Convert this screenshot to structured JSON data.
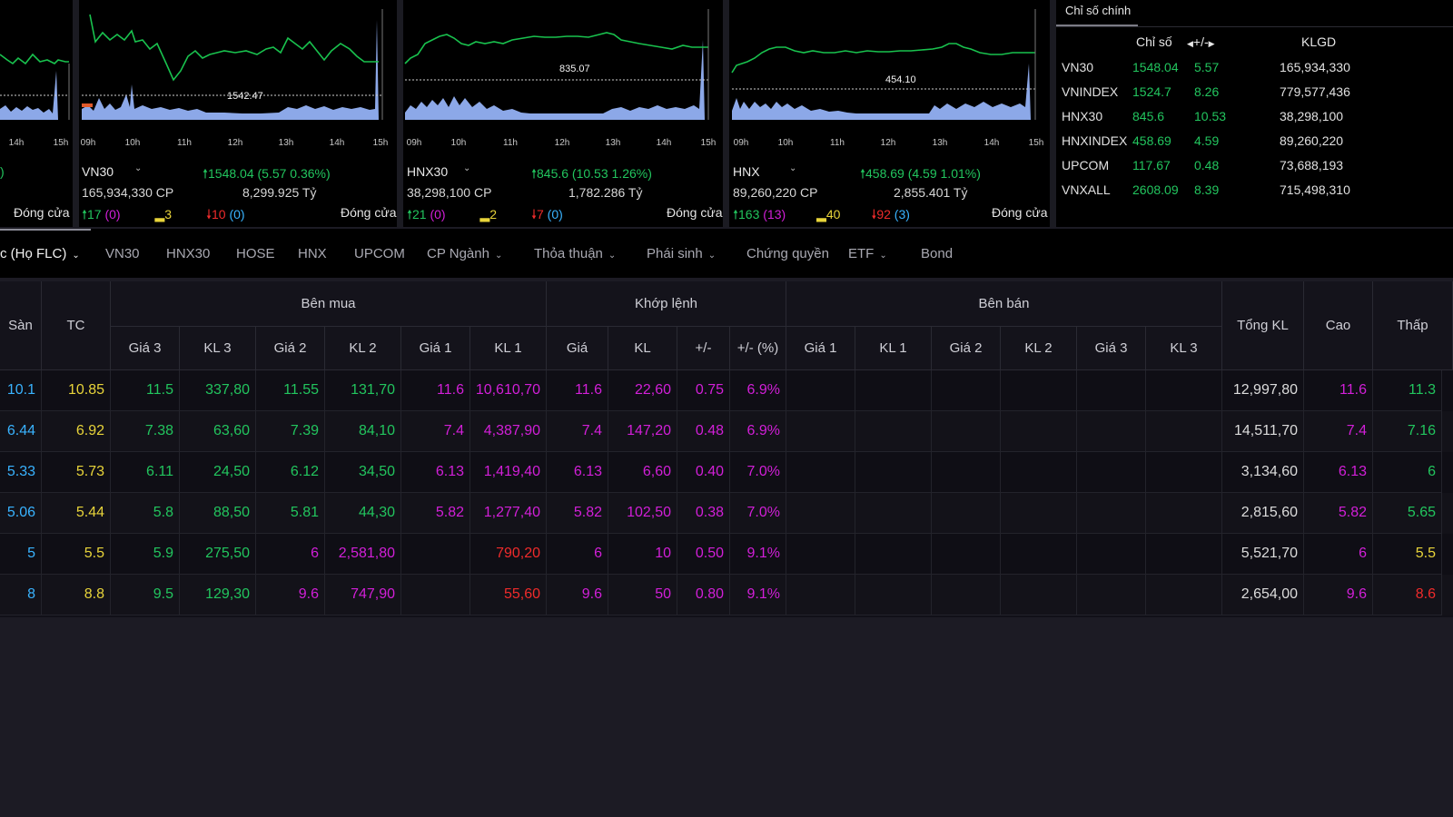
{
  "panels": [
    {
      "times": [
        "14h",
        "15h"
      ],
      "symbol_tail": ")",
      "close": "Đóng cửa"
    },
    {
      "symbol": "VN30",
      "level": "1542.47",
      "times": [
        "09h",
        "10h",
        "11h",
        "12h",
        "13h",
        "14h",
        "15h"
      ],
      "change": "🠕1548.04 (5.57  0.36%)",
      "volume": "165,934,330 CP",
      "value": "8,299.925 Tỷ",
      "up": "17",
      "up_ceiling": "(0)",
      "flat": "3",
      "down": "10",
      "down_floor": "(0)",
      "close": "Đóng cửa"
    },
    {
      "symbol": "HNX30",
      "level": "835.07",
      "times": [
        "09h",
        "10h",
        "11h",
        "12h",
        "13h",
        "14h",
        "15h"
      ],
      "change": "🠕845.6 (10.53  1.26%)",
      "volume": "38,298,100 CP",
      "value": "1,782.286 Tỷ",
      "up": "21",
      "up_ceiling": "(0)",
      "flat": "2",
      "down": "7",
      "down_floor": "(0)",
      "close": "Đóng cửa"
    },
    {
      "symbol": "HNX",
      "level": "454.10",
      "times": [
        "09h",
        "10h",
        "11h",
        "12h",
        "13h",
        "14h",
        "15h"
      ],
      "change": "🠕458.69 (4.59  1.01%)",
      "volume": "89,260,220 CP",
      "value": "2,855.401 Tỷ",
      "up": "163",
      "up_ceiling": "(13)",
      "flat": "40",
      "down": "92",
      "down_floor": "(3)",
      "close": "Đóng cửa"
    }
  ],
  "indices": {
    "title": "Chỉ số chính",
    "headers": {
      "index": "Chỉ số",
      "change": "+/-",
      "volume": "KLGD"
    },
    "rows": [
      {
        "name": "VN30",
        "value": "1548.04",
        "change": "5.57",
        "volume": "165,934,330"
      },
      {
        "name": "VNINDEX",
        "value": "1524.7",
        "change": "8.26",
        "volume": "779,577,436"
      },
      {
        "name": "HNX30",
        "value": "845.6",
        "change": "10.53",
        "volume": "38,298,100"
      },
      {
        "name": "HNXINDEX",
        "value": "458.69",
        "change": "4.59",
        "volume": "89,260,220"
      },
      {
        "name": "UPCOM",
        "value": "117.67",
        "change": "0.48",
        "volume": "73,688,193"
      },
      {
        "name": "VNXALL",
        "value": "2608.09",
        "change": "8.39",
        "volume": "715,498,310"
      }
    ]
  },
  "tabs": [
    {
      "label": "c (Họ FLC)",
      "dropdown": true
    },
    {
      "label": "VN30"
    },
    {
      "label": "HNX30"
    },
    {
      "label": "HOSE"
    },
    {
      "label": "HNX"
    },
    {
      "label": "UPCOM"
    },
    {
      "label": "CP Ngành",
      "dropdown": true
    },
    {
      "label": "Thỏa thuận",
      "dropdown": true
    },
    {
      "label": "Phái sinh",
      "dropdown": true
    },
    {
      "label": "Chứng quyền"
    },
    {
      "label": "ETF",
      "dropdown": true
    },
    {
      "label": "Bond"
    }
  ],
  "table": {
    "groups": {
      "buy": "Bên mua",
      "match": "Khớp lệnh",
      "sell": "Bên bán"
    },
    "headers": {
      "floor": "Sàn",
      "ref": "TC",
      "total": "Tổng KL",
      "high": "Cao",
      "low": "Thấp",
      "buy": [
        "Giá 3",
        "KL 3",
        "Giá 2",
        "KL 2",
        "Giá 1",
        "KL 1"
      ],
      "match": [
        "Giá",
        "KL",
        "+/-",
        "+/- (%)"
      ],
      "sell": [
        "Giá 1",
        "KL 1",
        "Giá 2",
        "KL 2",
        "Giá 3",
        "KL 3"
      ]
    },
    "rows": [
      {
        "floor": "10.1",
        "ref": "10.85",
        "b": [
          "11.5",
          "337,80",
          "11.55",
          "131,70",
          "11.6",
          "10,610,70"
        ],
        "m": [
          "11.6",
          "22,60",
          "0.75",
          "6.9%"
        ],
        "total": "12,997,80",
        "high": "11.6",
        "low": "11.3"
      },
      {
        "floor": "6.44",
        "ref": "6.92",
        "b": [
          "7.38",
          "63,60",
          "7.39",
          "84,10",
          "7.4",
          "4,387,90"
        ],
        "m": [
          "7.4",
          "147,20",
          "0.48",
          "6.9%"
        ],
        "total": "14,511,70",
        "high": "7.4",
        "low": "7.16"
      },
      {
        "floor": "5.33",
        "ref": "5.73",
        "b": [
          "6.11",
          "24,50",
          "6.12",
          "34,50",
          "6.13",
          "1,419,40"
        ],
        "m": [
          "6.13",
          "6,60",
          "0.40",
          "7.0%"
        ],
        "total": "3,134,60",
        "high": "6.13",
        "low": "6"
      },
      {
        "floor": "5.06",
        "ref": "5.44",
        "b": [
          "5.8",
          "88,50",
          "5.81",
          "44,30",
          "5.82",
          "1,277,40"
        ],
        "m": [
          "5.82",
          "102,50",
          "0.38",
          "7.0%"
        ],
        "total": "2,815,60",
        "high": "5.82",
        "low": "5.65"
      },
      {
        "floor": "5",
        "ref": "5.5",
        "b": [
          "5.9",
          "275,50",
          "6",
          "2,581,80",
          "",
          "790,20"
        ],
        "m": [
          "6",
          "10",
          "0.50",
          "9.1%"
        ],
        "total": "5,521,70",
        "high": "6",
        "low": "5.5"
      },
      {
        "floor": "8",
        "ref": "8.8",
        "b": [
          "9.5",
          "129,30",
          "9.6",
          "747,90",
          "",
          "55,60"
        ],
        "m": [
          "9.6",
          "50",
          "0.80",
          "9.1%"
        ],
        "total": "2,654,00",
        "high": "9.6",
        "low": "8.6"
      }
    ],
    "row_colors": [
      {
        "b": [
          "g",
          "g",
          "g",
          "g",
          "m",
          "m"
        ],
        "m": [
          "m",
          "m",
          "m",
          "m"
        ],
        "high": "m",
        "low": "g"
      },
      {
        "b": [
          "g",
          "g",
          "g",
          "g",
          "m",
          "m"
        ],
        "m": [
          "m",
          "m",
          "m",
          "m"
        ],
        "high": "m",
        "low": "g"
      },
      {
        "b": [
          "g",
          "g",
          "g",
          "g",
          "m",
          "m"
        ],
        "m": [
          "m",
          "m",
          "m",
          "m"
        ],
        "high": "m",
        "low": "g"
      },
      {
        "b": [
          "g",
          "g",
          "g",
          "g",
          "m",
          "m"
        ],
        "m": [
          "m",
          "m",
          "m",
          "m"
        ],
        "high": "m",
        "low": "g"
      },
      {
        "b": [
          "g",
          "g",
          "m",
          "m",
          "m",
          "r"
        ],
        "m": [
          "m",
          "m",
          "m",
          "m"
        ],
        "high": "m",
        "low": "y"
      },
      {
        "b": [
          "g",
          "g",
          "m",
          "m",
          "m",
          "r"
        ],
        "m": [
          "m",
          "m",
          "m",
          "m"
        ],
        "high": "m",
        "low": "r"
      }
    ]
  },
  "colors": {
    "up": "#22c55e",
    "down": "#ef2b2b",
    "ceiling": "#d21fd8",
    "floor": "#39b3ff",
    "ref": "#e8d43a"
  }
}
